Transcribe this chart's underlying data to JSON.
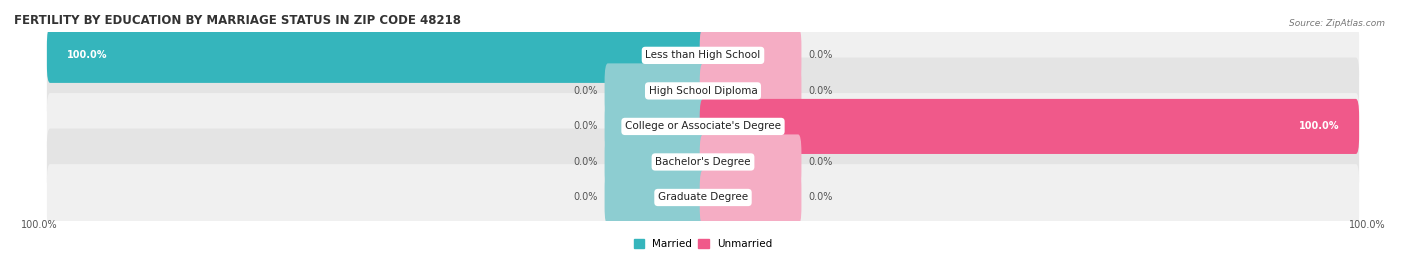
{
  "title": "FERTILITY BY EDUCATION BY MARRIAGE STATUS IN ZIP CODE 48218",
  "source": "Source: ZipAtlas.com",
  "categories": [
    "Less than High School",
    "High School Diploma",
    "College or Associate's Degree",
    "Bachelor's Degree",
    "Graduate Degree"
  ],
  "married_values": [
    100.0,
    0.0,
    0.0,
    0.0,
    0.0
  ],
  "unmarried_values": [
    0.0,
    0.0,
    100.0,
    0.0,
    0.0
  ],
  "married_color": "#35b5bc",
  "unmarried_color": "#f0598a",
  "married_light_color": "#8dcdd1",
  "unmarried_light_color": "#f5adc4",
  "row_bg_color_odd": "#f0f0f0",
  "row_bg_color_even": "#e4e4e4",
  "title_fontsize": 8.5,
  "label_fontsize": 7.5,
  "value_fontsize": 7,
  "legend_fontsize": 7.5,
  "stub_pct": 15,
  "full_pct": 100
}
